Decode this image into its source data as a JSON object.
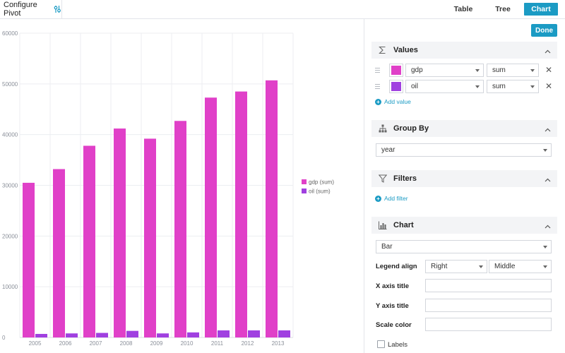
{
  "toolbar": {
    "configure_label": "Configure Pivot",
    "configure_icon": "sliders-icon",
    "tabs": [
      {
        "label": "Table",
        "active": false
      },
      {
        "label": "Tree",
        "active": false
      },
      {
        "label": "Chart",
        "active": true
      }
    ]
  },
  "panel": {
    "done_label": "Done",
    "values": {
      "title": "Values",
      "icon": "sigma-icon",
      "rows": [
        {
          "field": "gdp",
          "operation": "sum",
          "color": "#e040c8"
        },
        {
          "field": "oil",
          "operation": "sum",
          "color": "#a040e0"
        }
      ],
      "add_label": "Add value"
    },
    "group_by": {
      "title": "Group By",
      "icon": "hierarchy-icon",
      "value": "year"
    },
    "filters": {
      "title": "Filters",
      "icon": "funnel-icon",
      "add_label": "Add filter"
    },
    "chart": {
      "title": "Chart",
      "icon": "bar-chart-icon",
      "type_value": "Bar",
      "legend_align_label": "Legend align",
      "legend_align_h": "Right",
      "legend_align_v": "Middle",
      "x_axis_title_label": "X axis title",
      "x_axis_title_value": "",
      "y_axis_title_label": "Y axis title",
      "y_axis_title_value": "",
      "scale_color_label": "Scale color",
      "scale_color_value": "",
      "labels_label": "Labels",
      "labels_checked": false
    }
  },
  "colors": {
    "accent": "#1b9bc4",
    "gdp": "#e040c8",
    "oil": "#a040e0"
  },
  "chart_data": {
    "type": "bar",
    "categories": [
      "2005",
      "2006",
      "2007",
      "2008",
      "2009",
      "2010",
      "2011",
      "2012",
      "2013"
    ],
    "series": [
      {
        "name": "gdp (sum)",
        "values": [
          30500,
          33200,
          37800,
          41200,
          39200,
          42700,
          47300,
          48500,
          50700
        ]
      },
      {
        "name": "oil (sum)",
        "values": [
          700,
          800,
          900,
          1300,
          800,
          1000,
          1400,
          1400,
          1400
        ]
      }
    ],
    "ylim": [
      0,
      60000
    ],
    "yticks": [
      0,
      10000,
      20000,
      30000,
      40000,
      50000,
      60000
    ],
    "grid": true,
    "legend_position": "right-middle"
  }
}
